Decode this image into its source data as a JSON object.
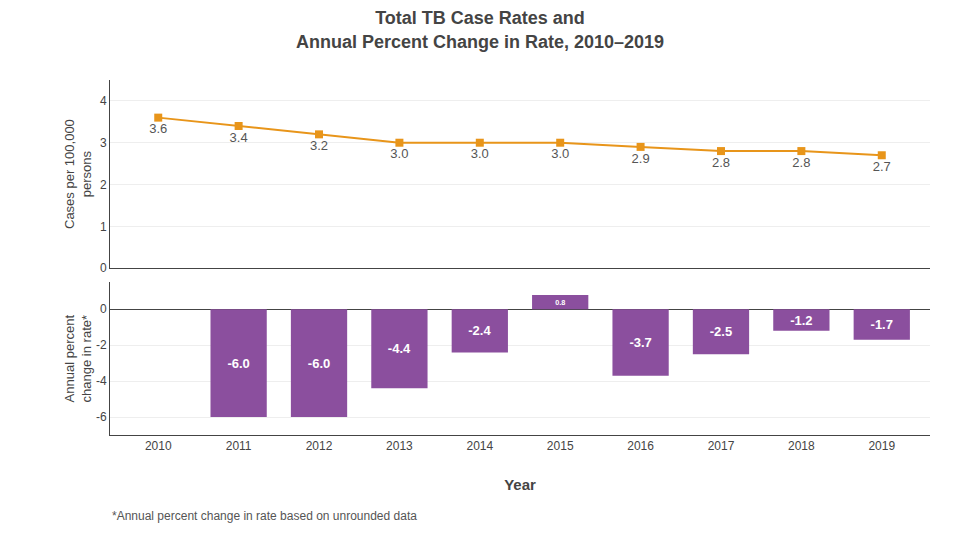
{
  "chart_data": [
    {
      "type": "line",
      "title": "Total TB Case Rates and\nAnnual Percent Change in Rate, 2010–2019",
      "x": [
        2010,
        2011,
        2012,
        2013,
        2014,
        2015,
        2016,
        2017,
        2018,
        2019
      ],
      "values": [
        3.6,
        3.4,
        3.2,
        3.0,
        3.0,
        3.0,
        2.9,
        2.8,
        2.8,
        2.7
      ],
      "value_labels": [
        "3.6",
        "3.4",
        "3.2",
        "3.0",
        "3.0",
        "3.0",
        "2.9",
        "2.8",
        "2.8",
        "2.7"
      ],
      "data_labels": true,
      "color": "#E8951A",
      "marker": "square",
      "ylabel": "Cases per 100,000\npersons",
      "xlim": [
        2009.4,
        2019.6
      ],
      "xticks": [
        2010,
        2011,
        2012,
        2013,
        2014,
        2015,
        2016,
        2017,
        2018,
        2019
      ],
      "ylim": [
        0,
        4.5
      ],
      "yticks": [
        0,
        1,
        2,
        3,
        4
      ],
      "grid": true,
      "tick_labels": "y"
    },
    {
      "type": "bar",
      "x": [
        2010,
        2011,
        2012,
        2013,
        2014,
        2015,
        2016,
        2017,
        2018,
        2019
      ],
      "values": [
        null,
        -6.0,
        -6.0,
        -4.4,
        -2.4,
        0.8,
        -3.7,
        -2.5,
        -1.2,
        -1.7
      ],
      "value_labels": [
        null,
        "-6.0",
        "-6.0",
        "-4.4",
        "-2.4",
        "0.8",
        "-3.7",
        "-2.5",
        "-1.2",
        "-1.7"
      ],
      "data_labels": true,
      "color": "#8B4F9E",
      "ylabel": "Annual percent\nchange in rate*",
      "xlabel": "Year",
      "xlim": [
        2009.4,
        2019.6
      ],
      "xticks": [
        2010,
        2011,
        2012,
        2013,
        2014,
        2015,
        2016,
        2017,
        2018,
        2019
      ],
      "ylim": [
        -7,
        1.5
      ],
      "yticks": [
        -6,
        -4,
        -2,
        0
      ],
      "grid": true,
      "annotations": [
        "*Annual percent change in rate based on unrounded data"
      ]
    }
  ]
}
